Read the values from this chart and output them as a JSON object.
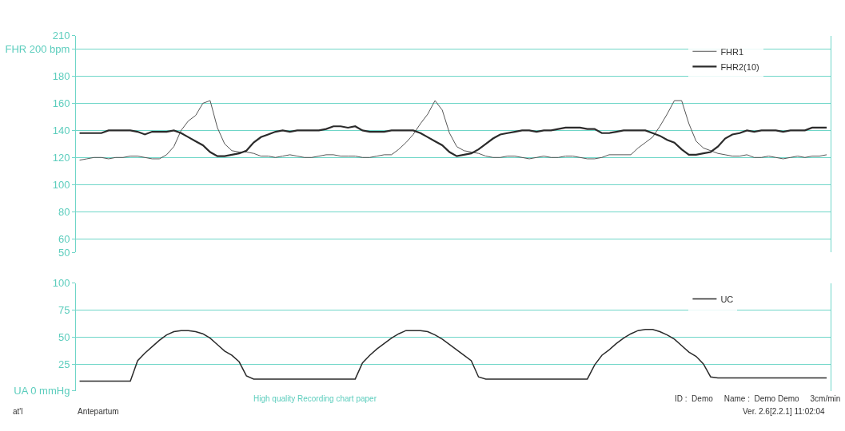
{
  "chart_data": [
    {
      "type": "line",
      "categories": [
        null,
        null,
        null,
        null,
        null,
        null,
        null,
        null,
        null,
        null,
        null,
        null,
        null,
        null,
        null,
        null,
        null,
        null,
        null,
        null,
        null,
        null,
        null,
        null,
        null,
        null,
        null,
        null,
        null,
        null,
        null,
        null,
        null,
        null,
        null,
        null,
        null,
        null,
        null,
        null,
        null,
        null,
        null,
        null,
        null,
        null,
        null,
        null,
        null,
        null,
        null,
        null,
        null,
        null,
        null,
        null,
        null,
        null,
        null,
        null,
        null,
        null,
        null,
        null,
        null,
        null,
        null,
        null,
        null,
        null,
        null,
        null,
        null,
        null,
        null,
        null,
        null,
        null,
        null,
        null,
        null,
        null,
        null,
        null,
        null,
        null,
        null,
        null,
        null,
        null,
        null,
        null,
        null,
        null,
        null,
        null,
        null,
        null,
        null,
        null,
        null,
        null,
        null,
        null
      ],
      "series": [
        {
          "name": "FHR1",
          "color": "#555555",
          "values": [
            118,
            119,
            120,
            120,
            119,
            120,
            120,
            121,
            121,
            120,
            119,
            119,
            122,
            128,
            140,
            147,
            151,
            160,
            162,
            142,
            130,
            125,
            124,
            124,
            123,
            121,
            121,
            120,
            121,
            122,
            121,
            120,
            120,
            121,
            122,
            122,
            121,
            121,
            121,
            120,
            120,
            121,
            122,
            122,
            126,
            131,
            137,
            145,
            152,
            162,
            155,
            138,
            128,
            125,
            124,
            123,
            121,
            120,
            120,
            121,
            121,
            120,
            119,
            120,
            121,
            120,
            120,
            121,
            121,
            120,
            119,
            119,
            120,
            122,
            122,
            122,
            122,
            127,
            131,
            135,
            143,
            152,
            162,
            162,
            145,
            132,
            127,
            125,
            123,
            122,
            121,
            121,
            122,
            120,
            120,
            121,
            120,
            119,
            120,
            121,
            120,
            121,
            121,
            122
          ]
        },
        {
          "name": "FHR2(10)",
          "color": "#2b2b2b",
          "values": [
            138,
            138,
            138,
            138,
            140,
            140,
            140,
            140,
            139,
            137,
            139,
            139,
            139,
            140,
            138,
            135,
            132,
            129,
            124,
            121,
            121,
            122,
            123,
            125,
            131,
            135,
            137,
            139,
            140,
            139,
            140,
            140,
            140,
            140,
            141,
            143,
            143,
            142,
            143,
            140,
            139,
            139,
            139,
            140,
            140,
            140,
            140,
            138,
            135,
            132,
            129,
            124,
            121,
            122,
            123,
            126,
            130,
            134,
            137,
            138,
            139,
            140,
            140,
            139,
            140,
            140,
            141,
            142,
            142,
            142,
            141,
            141,
            138,
            138,
            139,
            140,
            140,
            140,
            140,
            138,
            136,
            133,
            131,
            126,
            122,
            122,
            123,
            124,
            128,
            134,
            137,
            138,
            140,
            139,
            140,
            140,
            140,
            139,
            140,
            140,
            140,
            142,
            142,
            142
          ]
        }
      ],
      "ylim": [
        50,
        210
      ],
      "yticks": [
        50,
        60,
        80,
        100,
        120,
        140,
        160,
        180,
        {
          "value": 200,
          "label": "FHR 200 bpm"
        },
        210
      ],
      "grid": true,
      "legend": "top right",
      "tick_labels": "y"
    },
    {
      "type": "line",
      "categories": [
        null,
        null,
        null,
        null,
        null,
        null,
        null,
        null,
        null,
        null,
        null,
        null,
        null,
        null,
        null,
        null,
        null,
        null,
        null,
        null,
        null,
        null,
        null,
        null,
        null,
        null,
        null,
        null,
        null,
        null,
        null,
        null,
        null,
        null,
        null,
        null,
        null,
        null,
        null,
        null,
        null,
        null,
        null,
        null,
        null,
        null,
        null,
        null,
        null,
        null,
        null,
        null,
        null,
        null,
        null,
        null,
        null,
        null,
        null,
        null,
        null,
        null,
        null,
        null,
        null,
        null,
        null,
        null,
        null,
        null,
        null,
        null,
        null,
        null,
        null,
        null,
        null,
        null,
        null,
        null,
        null,
        null,
        null,
        null,
        null,
        null,
        null,
        null,
        null,
        null,
        null,
        null,
        null,
        null,
        null,
        null,
        null,
        null,
        null,
        null,
        null,
        null,
        null,
        null
      ],
      "series": [
        {
          "name": "UC",
          "color": "#2b2b2b",
          "values": [
            9,
            9,
            9,
            9,
            9,
            9,
            9,
            9,
            28,
            35,
            41,
            47,
            52,
            55,
            56,
            56,
            55,
            53,
            49,
            43,
            37,
            33,
            27,
            14,
            11,
            11,
            11,
            11,
            11,
            11,
            11,
            11,
            11,
            11,
            11,
            11,
            11,
            11,
            11,
            26,
            33,
            39,
            44,
            49,
            53,
            56,
            56,
            56,
            55,
            52,
            48,
            43,
            38,
            33,
            28,
            13,
            11,
            11,
            11,
            11,
            11,
            11,
            11,
            11,
            11,
            11,
            11,
            11,
            11,
            11,
            11,
            24,
            33,
            38,
            44,
            49,
            53,
            56,
            57,
            57,
            55,
            52,
            48,
            42,
            36,
            32,
            25,
            13,
            12,
            12,
            12,
            12,
            12,
            12,
            12,
            12,
            12,
            12,
            12,
            12,
            12,
            12,
            12,
            12
          ]
        }
      ],
      "ylim": [
        0,
        100
      ],
      "yticks": [
        {
          "value": 0,
          "label": "UA 0 mmHg"
        },
        25,
        50,
        75,
        100
      ],
      "grid": true,
      "legend": "top right",
      "tick_labels": "y",
      "annotations": [
        "at'l",
        "Antepartum",
        "High quality Recording chart paper",
        "ID :  Demo     Name :  Demo Demo     3cm/min",
        "Ver. 2.6[2.2.1] 11:02:04"
      ]
    }
  ]
}
